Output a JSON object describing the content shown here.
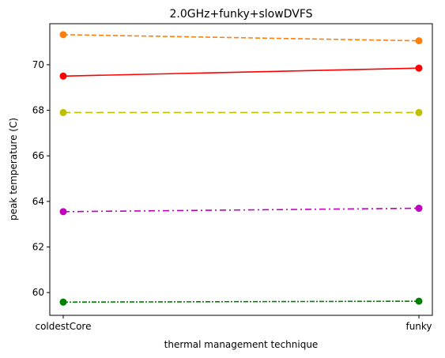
{
  "chart_data": {
    "type": "line",
    "title": "2.0GHz+funky+slowDVFS",
    "xlabel": "thermal management technique",
    "ylabel": "peak temperature (C)",
    "categories": [
      "coldestCore",
      "funky"
    ],
    "ylim": [
      59.0,
      71.8
    ],
    "yticks": [
      60,
      62,
      64,
      66,
      68,
      70
    ],
    "grid": false,
    "series": [
      {
        "values": [
          71.32,
          71.05
        ],
        "color": "#ff7f0e",
        "dash": "6,3"
      },
      {
        "values": [
          69.5,
          69.85
        ],
        "color": "#ff0000",
        "dash": ""
      },
      {
        "values": [
          67.9,
          67.9
        ],
        "color": "#bfbf00",
        "dash": "9,5"
      },
      {
        "values": [
          63.55,
          63.7
        ],
        "color": "#bf00bf",
        "dash": "8,4,2,4"
      },
      {
        "values": [
          59.58,
          59.62
        ],
        "color": "#008000",
        "dash": "6,2,2,2"
      }
    ]
  }
}
